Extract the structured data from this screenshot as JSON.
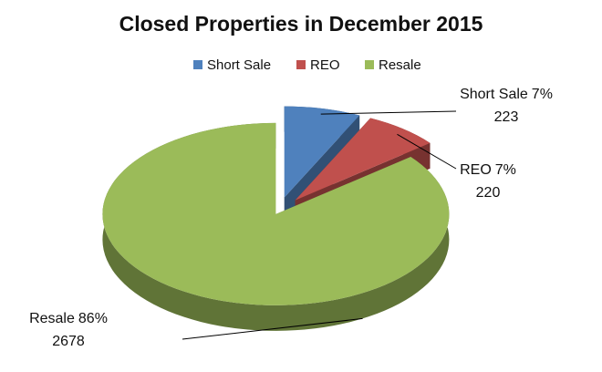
{
  "chart_data": {
    "type": "pie3d",
    "title": "Closed Properties in December 2015",
    "categories": [
      "Short Sale",
      "REO",
      "Resale"
    ],
    "values": [
      223,
      220,
      2678
    ],
    "percent_labels": [
      "7%",
      "7%",
      "86%"
    ],
    "colors": [
      "#4f81bd",
      "#c0504d",
      "#9bbb59"
    ],
    "legend": "top"
  }
}
